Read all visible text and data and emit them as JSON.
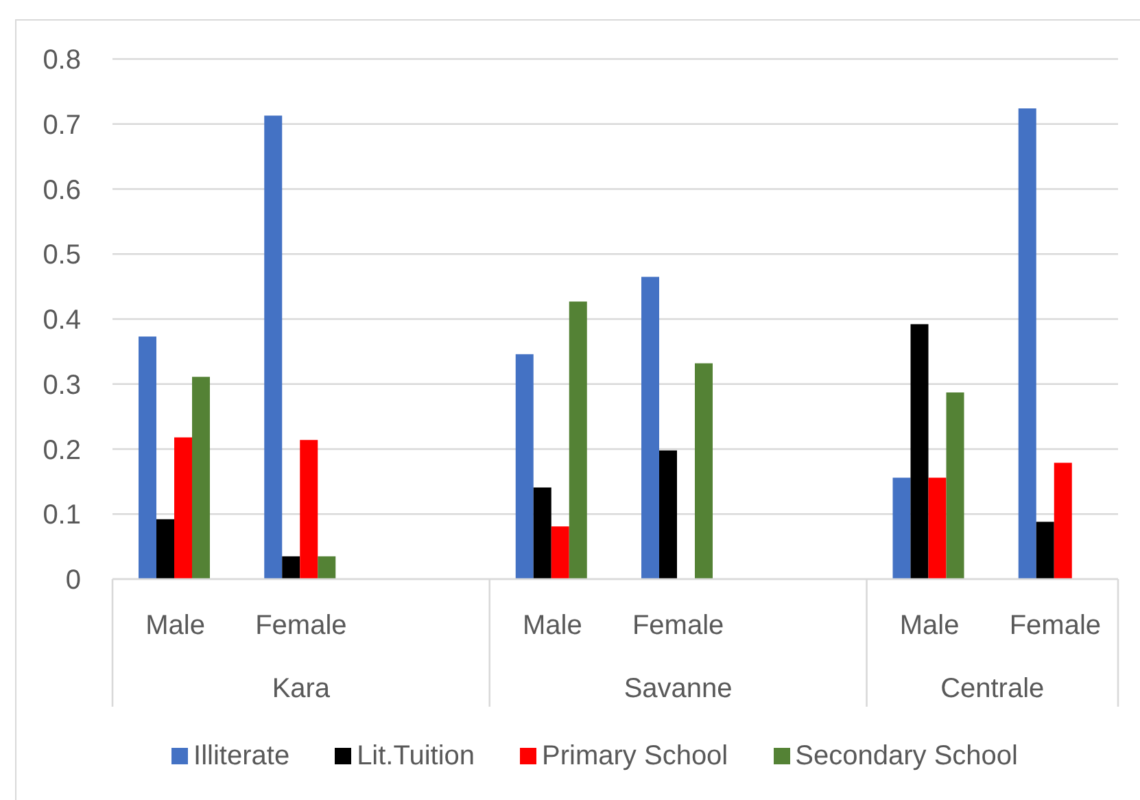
{
  "chart_data": {
    "type": "bar",
    "categories": [
      "Male",
      "Female",
      null,
      "Male",
      "Female",
      null,
      "Male",
      "Female"
    ],
    "annotations": [
      "Kara",
      "Savanne",
      "Centrale"
    ],
    "series": [
      {
        "name": "Illiterate",
        "color": "#4472c4",
        "values": [
          0.373,
          0.713,
          null,
          0.346,
          0.465,
          null,
          0.156,
          0.724
        ]
      },
      {
        "name": "Lit.Tuition",
        "color": "#000000",
        "values": [
          0.092,
          0.035,
          null,
          0.141,
          0.198,
          null,
          0.392,
          0.088
        ]
      },
      {
        "name": "Primary School",
        "color": "#ff0000",
        "values": [
          0.218,
          0.214,
          null,
          0.081,
          null,
          null,
          0.156,
          0.179
        ]
      },
      {
        "name": "Secondary School",
        "color": "#548235",
        "values": [
          0.311,
          0.035,
          null,
          0.427,
          0.332,
          null,
          0.287,
          null
        ]
      }
    ],
    "ylim": [
      0,
      0.8
    ],
    "yticks": [
      0,
      0.1,
      0.2,
      0.3,
      0.4,
      0.5,
      0.6,
      0.7,
      0.8
    ],
    "grid": "y",
    "legend": "bottom"
  }
}
